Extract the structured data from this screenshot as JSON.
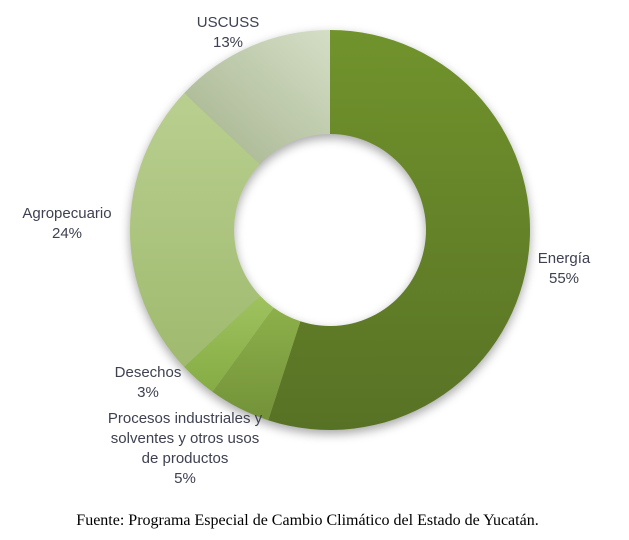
{
  "chart_data": {
    "type": "pie",
    "subtype": "donut",
    "start_angle_deg": 0,
    "direction": "clockwise",
    "inner_radius_ratio": 0.48,
    "labels_position": "outside",
    "legend": "none",
    "unit": "%",
    "categories": [
      "Energía",
      "Procesos industriales y solventes y otros usos de productos",
      "Desechos",
      "Agropecuario",
      "USCUSS"
    ],
    "values": [
      55,
      5,
      3,
      24,
      13
    ],
    "label_color": "#3e4151",
    "slices": [
      {
        "label": "Energía",
        "label_display": "Energía",
        "value": 55,
        "pct_label": "55%",
        "gradient": {
          "from": "#71932c",
          "to": "#587225",
          "vec": [
            0,
            0,
            0,
            1
          ]
        }
      },
      {
        "label": "Procesos industriales y solventes y otros usos de productos",
        "label_display": "Procesos industriales y\nsolventes y otros usos\nde productos",
        "value": 5,
        "pct_label": "5%",
        "gradient": {
          "from": "#8db04a",
          "to": "#739239",
          "vec": [
            0,
            0,
            0,
            1
          ]
        }
      },
      {
        "label": "Desechos",
        "label_display": "Desechos",
        "value": 3,
        "pct_label": "3%",
        "gradient": {
          "from": "#9fc25f",
          "to": "#85ac44",
          "vec": [
            0,
            0,
            0,
            1
          ]
        }
      },
      {
        "label": "Agropecuario",
        "label_display": "Agropecuario",
        "value": 24,
        "pct_label": "24%",
        "gradient": {
          "from": "#b9cf90",
          "to": "#9fba6e",
          "vec": [
            0,
            0,
            0,
            1
          ]
        }
      },
      {
        "label": "USCUSS",
        "label_display": "USCUSS",
        "value": 13,
        "pct_label": "13%",
        "gradient": {
          "from": "#a4b28c",
          "to": "#d4dec6",
          "vec": [
            0,
            1,
            1,
            0
          ]
        }
      }
    ]
  },
  "footer": {
    "source_text": "Fuente: Programa Especial de Cambio Climático del Estado de Yucatán."
  }
}
